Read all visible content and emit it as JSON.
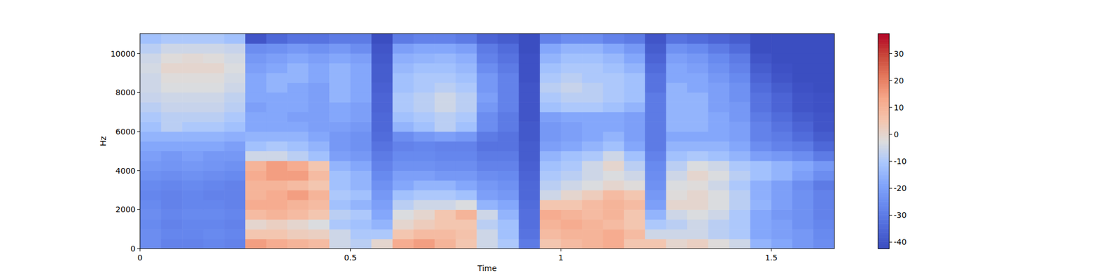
{
  "chart_data": {
    "type": "heatmap",
    "x_label": "Time",
    "y_label": "Hz",
    "xlim": [
      0,
      1.65
    ],
    "xticks": [
      0,
      0.5,
      1,
      1.5
    ],
    "ylim": [
      0,
      11025
    ],
    "yticks": [
      0,
      2000,
      4000,
      6000,
      8000,
      10000
    ],
    "color": "coolwarm",
    "color_range": [
      -42.4,
      37.4
    ],
    "color_ticks": [
      -40,
      -30,
      -20,
      -10,
      0,
      10,
      20,
      30
    ],
    "time_bins": [
      0,
      0.05,
      0.1,
      0.15,
      0.2,
      0.25,
      0.3,
      0.35,
      0.4,
      0.45,
      0.5,
      0.55,
      0.6,
      0.65,
      0.7,
      0.75,
      0.8,
      0.85,
      0.9,
      0.95,
      1.0,
      1.05,
      1.1,
      1.15,
      1.2,
      1.25,
      1.3,
      1.35,
      1.4,
      1.45,
      1.5,
      1.55,
      1.6,
      1.65
    ],
    "frequency_bins": [
      0,
      501,
      1002,
      1503,
      2004,
      2505,
      3006,
      3507,
      4008,
      4509,
      5010,
      5511,
      6012,
      6513,
      7014,
      7515,
      8016,
      8517,
      9018,
      9519,
      10020,
      10521,
      11025
    ],
    "cells": [
      [
        -25,
        -28,
        -28,
        -27,
        -28,
        15,
        12,
        10,
        8,
        -5,
        -8,
        0,
        12,
        15,
        10,
        5,
        -5,
        -10,
        -30,
        5,
        8,
        10,
        12,
        5,
        5,
        0,
        2,
        -2,
        -5,
        -15,
        -18,
        -22,
        -25
      ],
      [
        -25,
        -27,
        -27,
        -26,
        -27,
        5,
        5,
        3,
        2,
        -5,
        -10,
        -10,
        5,
        8,
        8,
        6,
        -5,
        -12,
        -32,
        8,
        10,
        10,
        12,
        8,
        -5,
        -5,
        -5,
        -8,
        -10,
        -18,
        -20,
        -22,
        -26
      ],
      [
        -26,
        -28,
        -27,
        -27,
        -28,
        0,
        2,
        0,
        -3,
        -10,
        -12,
        -15,
        0,
        3,
        5,
        5,
        -8,
        -12,
        -33,
        10,
        12,
        10,
        8,
        5,
        -10,
        -8,
        -5,
        -8,
        -10,
        -18,
        -20,
        -24,
        -27
      ],
      [
        -25,
        -27,
        -26,
        -26,
        -27,
        8,
        10,
        8,
        5,
        -8,
        -10,
        -18,
        -3,
        0,
        5,
        10,
        -5,
        -15,
        -33,
        12,
        10,
        8,
        10,
        5,
        -15,
        -5,
        -3,
        -5,
        -10,
        -18,
        -22,
        -24,
        -28
      ],
      [
        -26,
        -28,
        -27,
        -27,
        -28,
        12,
        12,
        10,
        8,
        -12,
        -15,
        -20,
        -8,
        -5,
        -5,
        -3,
        -15,
        -18,
        -34,
        5,
        5,
        8,
        10,
        8,
        -20,
        0,
        0,
        -3,
        -8,
        -15,
        -20,
        -24,
        -28
      ],
      [
        -27,
        -28,
        -27,
        -28,
        -28,
        10,
        12,
        15,
        10,
        -10,
        -12,
        -22,
        -12,
        -10,
        -10,
        -12,
        -20,
        -22,
        -35,
        -5,
        0,
        3,
        8,
        5,
        -22,
        -2,
        0,
        -3,
        -8,
        -16,
        -20,
        -24,
        -28
      ],
      [
        -26,
        -27,
        -26,
        -27,
        -28,
        10,
        10,
        8,
        5,
        -12,
        -15,
        -24,
        -18,
        -15,
        -15,
        -18,
        -22,
        -24,
        -35,
        -8,
        -5,
        -3,
        0,
        -2,
        -24,
        -3,
        -2,
        -5,
        -10,
        -16,
        -20,
        -25,
        -30
      ],
      [
        -24,
        -25,
        -24,
        -25,
        -26,
        12,
        15,
        15,
        8,
        -12,
        -15,
        -26,
        -20,
        -20,
        -22,
        -22,
        -25,
        -26,
        -36,
        -10,
        -8,
        -5,
        -3,
        -5,
        -25,
        -5,
        0,
        -3,
        -8,
        -12,
        -15,
        -20,
        -25
      ],
      [
        -22,
        -23,
        -22,
        -23,
        -24,
        10,
        15,
        12,
        5,
        -15,
        -18,
        -28,
        -24,
        -24,
        -25,
        -25,
        -28,
        -28,
        -37,
        -12,
        -10,
        -5,
        0,
        -8,
        -26,
        -8,
        -3,
        -5,
        -10,
        -12,
        -15,
        -18,
        -22
      ],
      [
        -20,
        -22,
        -20,
        -22,
        -22,
        -5,
        -5,
        -8,
        -12,
        -20,
        -22,
        -30,
        -26,
        -26,
        -27,
        -27,
        -30,
        -30,
        -38,
        -15,
        -12,
        -10,
        -5,
        -12,
        -28,
        -12,
        -10,
        -12,
        -15,
        -20,
        -22,
        -25,
        -30
      ],
      [
        -18,
        -18,
        -18,
        -18,
        -20,
        -12,
        -10,
        -12,
        -15,
        -22,
        -24,
        -32,
        -28,
        -27,
        -28,
        -28,
        -32,
        -32,
        -38,
        -20,
        -18,
        -15,
        -12,
        -18,
        -30,
        -15,
        -15,
        -15,
        -18,
        -25,
        -28,
        -30,
        -35
      ],
      [
        -15,
        -15,
        -15,
        -15,
        -16,
        -15,
        -15,
        -15,
        -18,
        -22,
        -24,
        -34,
        -25,
        -22,
        -20,
        -22,
        -30,
        -32,
        -39,
        -22,
        -20,
        -18,
        -15,
        -20,
        -30,
        -18,
        -18,
        -18,
        -20,
        -28,
        -30,
        -34,
        -38
      ],
      [
        -12,
        -8,
        -10,
        -10,
        -12,
        -18,
        -18,
        -18,
        -20,
        -20,
        -22,
        -35,
        -15,
        -12,
        -8,
        -12,
        -25,
        -30,
        -39,
        -22,
        -20,
        -18,
        -18,
        -20,
        -30,
        -15,
        -15,
        -18,
        -20,
        -28,
        -32,
        -36,
        -40
      ],
      [
        -10,
        -8,
        -8,
        -8,
        -10,
        -18,
        -18,
        -20,
        -20,
        -18,
        -20,
        -35,
        -12,
        -10,
        -8,
        -10,
        -25,
        -30,
        -40,
        -20,
        -18,
        -18,
        -18,
        -20,
        -30,
        -15,
        -15,
        -18,
        -22,
        -30,
        -34,
        -38,
        -40
      ],
      [
        -8,
        -6,
        -6,
        -6,
        -8,
        -20,
        -18,
        -18,
        -20,
        -18,
        -20,
        -36,
        -10,
        -8,
        -5,
        -8,
        -22,
        -28,
        -40,
        -12,
        -10,
        -10,
        -12,
        -15,
        -30,
        -15,
        -15,
        -20,
        -22,
        -32,
        -36,
        -40,
        -41
      ],
      [
        -6,
        -5,
        -5,
        -5,
        -7,
        -18,
        -18,
        -18,
        -20,
        -15,
        -18,
        -36,
        -10,
        -8,
        -5,
        -8,
        -20,
        -28,
        -40,
        -10,
        -8,
        -8,
        -10,
        -12,
        -30,
        -15,
        -15,
        -20,
        -24,
        -32,
        -36,
        -40,
        -41
      ],
      [
        -5,
        -3,
        -3,
        -3,
        -5,
        -18,
        -15,
        -18,
        -20,
        -15,
        -18,
        -37,
        -12,
        -10,
        -8,
        -10,
        -22,
        -28,
        -40,
        -8,
        -6,
        -8,
        -10,
        -12,
        -32,
        -15,
        -18,
        -20,
        -24,
        -34,
        -38,
        -41,
        -42
      ],
      [
        -5,
        -2,
        -2,
        -2,
        -4,
        -18,
        -15,
        -15,
        -18,
        -15,
        -18,
        -38,
        -12,
        -10,
        -10,
        -12,
        -22,
        -28,
        -41,
        -10,
        -8,
        -10,
        -10,
        -12,
        -32,
        -18,
        -18,
        -22,
        -26,
        -36,
        -40,
        -42,
        -42
      ],
      [
        -4,
        0,
        0,
        0,
        -3,
        -20,
        -18,
        -15,
        -18,
        -15,
        -18,
        -38,
        -14,
        -12,
        -12,
        -14,
        -25,
        -30,
        -41,
        -12,
        -10,
        -10,
        -12,
        -15,
        -34,
        -18,
        -20,
        -24,
        -28,
        -38,
        -41,
        -42,
        -42
      ],
      [
        -5,
        -2,
        -1,
        -2,
        -4,
        -22,
        -20,
        -18,
        -20,
        -18,
        -20,
        -39,
        -16,
        -15,
        -14,
        -16,
        -28,
        -32,
        -41,
        -15,
        -12,
        -12,
        -14,
        -18,
        -36,
        -20,
        -22,
        -26,
        -30,
        -40,
        -42,
        -42,
        -42
      ],
      [
        -8,
        -5,
        -5,
        -5,
        -6,
        -25,
        -24,
        -22,
        -24,
        -22,
        -25,
        -40,
        -20,
        -18,
        -18,
        -20,
        -30,
        -34,
        -42,
        -18,
        -15,
        -15,
        -18,
        -22,
        -38,
        -24,
        -26,
        -30,
        -34,
        -42,
        -42,
        -42,
        -42
      ],
      [
        -12,
        -10,
        -10,
        -10,
        -12,
        -40,
        -35,
        -32,
        -32,
        -30,
        -30,
        -42,
        -30,
        -28,
        -28,
        -30,
        -36,
        -38,
        -42,
        -28,
        -25,
        -25,
        -28,
        -30,
        -40,
        -32,
        -34,
        -36,
        -38,
        -42,
        -42,
        -42,
        -42
      ]
    ]
  }
}
